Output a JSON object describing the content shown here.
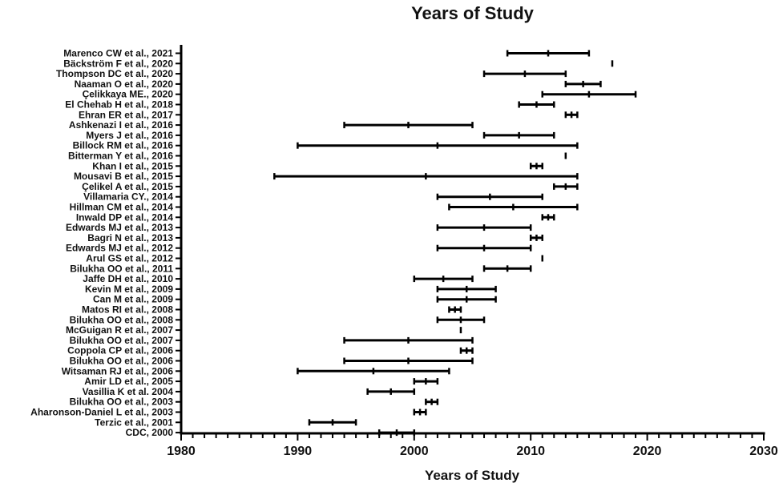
{
  "chart_data": {
    "type": "range",
    "title": "Years of Study",
    "xlabel": "Years of Study",
    "ylabel": "",
    "xlim": [
      1980,
      2030
    ],
    "xticks": [
      1980,
      1990,
      2000,
      2010,
      2020,
      2030
    ],
    "x_minor_step": 1,
    "grid": false,
    "legend": "none",
    "colors": {
      "bar": "#000000",
      "axis": "#000000",
      "text": "#111111"
    },
    "studies": [
      {
        "label": "Marenco CW et al., 2021",
        "start": 2008,
        "mid": 2011.5,
        "end": 2015
      },
      {
        "label": "Bäckström F et al., 2020",
        "start": 2017,
        "mid": 2017,
        "end": 2017
      },
      {
        "label": "Thompson DC et al., 2020",
        "start": 2006,
        "mid": 2009.5,
        "end": 2013
      },
      {
        "label": "Naaman O et al., 2020",
        "start": 2013,
        "mid": 2014.5,
        "end": 2016
      },
      {
        "label": "Çelikkaya ME., 2020",
        "start": 2011,
        "mid": 2015,
        "end": 2019
      },
      {
        "label": "El Chehab H et al., 2018",
        "start": 2009,
        "mid": 2010.5,
        "end": 2012
      },
      {
        "label": "Ehran ER et al., 2017",
        "start": 2013,
        "mid": 2013.5,
        "end": 2014
      },
      {
        "label": "Ashkenazi I et al., 2016",
        "start": 1994,
        "mid": 1999.5,
        "end": 2005
      },
      {
        "label": "Myers J et al., 2016",
        "start": 2006,
        "mid": 2009,
        "end": 2012
      },
      {
        "label": "Billock RM et al., 2016",
        "start": 1990,
        "mid": 2002,
        "end": 2014
      },
      {
        "label": "Bitterman Y et al., 2016",
        "start": 2013,
        "mid": 2013,
        "end": 2013
      },
      {
        "label": "Khan I et al., 2015",
        "start": 2010,
        "mid": 2010.5,
        "end": 2011
      },
      {
        "label": "Mousavi B et al., 2015",
        "start": 1988,
        "mid": 2001,
        "end": 2014
      },
      {
        "label": "Çelikel A et al., 2015",
        "start": 2012,
        "mid": 2013,
        "end": 2014
      },
      {
        "label": "Villamaria CY., 2014",
        "start": 2002,
        "mid": 2006.5,
        "end": 2011
      },
      {
        "label": "Hillman CM et al., 2014",
        "start": 2003,
        "mid": 2008.5,
        "end": 2014
      },
      {
        "label": "Inwald DP et al., 2014",
        "start": 2011,
        "mid": 2011.5,
        "end": 2012
      },
      {
        "label": "Edwards MJ et al., 2013",
        "start": 2002,
        "mid": 2006,
        "end": 2010
      },
      {
        "label": "Bagri N et al., 2013",
        "start": 2010,
        "mid": 2010.5,
        "end": 2011
      },
      {
        "label": "Edwards MJ et al., 2012",
        "start": 2002,
        "mid": 2006,
        "end": 2010
      },
      {
        "label": "Arul GS et al., 2012",
        "start": 2011,
        "mid": 2011,
        "end": 2011
      },
      {
        "label": "Bilukha OO et al., 2011",
        "start": 2006,
        "mid": 2008,
        "end": 2010
      },
      {
        "label": "Jaffe DH et al., 2010",
        "start": 2000,
        "mid": 2002.5,
        "end": 2005
      },
      {
        "label": "Kevin M et al., 2009",
        "start": 2002,
        "mid": 2004.5,
        "end": 2007
      },
      {
        "label": "Can M et al., 2009",
        "start": 2002,
        "mid": 2004.5,
        "end": 2007
      },
      {
        "label": "Matos RI et al., 2008",
        "start": 2003,
        "mid": 2003.5,
        "end": 2004
      },
      {
        "label": "Bilukha OO et al., 2008",
        "start": 2002,
        "mid": 2004,
        "end": 2006
      },
      {
        "label": "McGuigan R et al., 2007",
        "start": 2004,
        "mid": 2004,
        "end": 2004
      },
      {
        "label": "Bilukha OO et al., 2007",
        "start": 1994,
        "mid": 1999.5,
        "end": 2005
      },
      {
        "label": "Coppola CP et al., 2006",
        "start": 2004,
        "mid": 2004.5,
        "end": 2005
      },
      {
        "label": "Bilukha OO et al., 2006",
        "start": 1994,
        "mid": 1999.5,
        "end": 2005
      },
      {
        "label": "Witsaman RJ et al., 2006",
        "start": 1990,
        "mid": 1996.5,
        "end": 2003
      },
      {
        "label": "Amir LD et al., 2005",
        "start": 2000,
        "mid": 2001,
        "end": 2002
      },
      {
        "label": "Vasillia K et al. 2004",
        "start": 1996,
        "mid": 1998,
        "end": 2000
      },
      {
        "label": "Bilukha OO et al., 2003",
        "start": 2001,
        "mid": 2001.5,
        "end": 2002
      },
      {
        "label": "Aharonson-Daniel L et al., 2003",
        "start": 2000,
        "mid": 2000.5,
        "end": 2001
      },
      {
        "label": "Terzic et al., 2001",
        "start": 1991,
        "mid": 1993,
        "end": 1995
      },
      {
        "label": "CDC, 2000",
        "start": 1997,
        "mid": 1998.5,
        "end": 2000
      }
    ]
  }
}
